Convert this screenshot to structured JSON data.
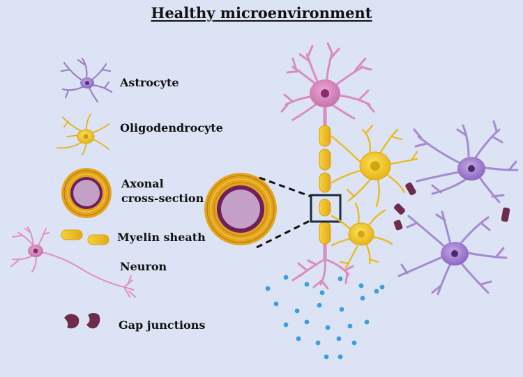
{
  "title": "Healthy microenvironment",
  "legend": {
    "astrocyte": "Astrocyte",
    "oligodendrocyte": "Oligodendrocyte",
    "axonal_line1": "Axonal",
    "axonal_line2": "cross-section",
    "myelin": "Myelin sheath",
    "neuron": "Neuron",
    "gap": "Gap junctions"
  },
  "colors": {
    "background": "#dce3f4",
    "neuron": "#d98cc0",
    "neuron_dark": "#b0608f",
    "astrocyte": "#a58ad0",
    "astrocyte_dark": "#7a5aaa",
    "oligodendrocyte": "#f2cc2a",
    "myelin_orange": "#e5a11a",
    "axon_core": "#c5a0c6",
    "axon_ring": "#6e1f5d",
    "gap_junction": "#6d2c4c",
    "dots": "#3a9ee0"
  }
}
